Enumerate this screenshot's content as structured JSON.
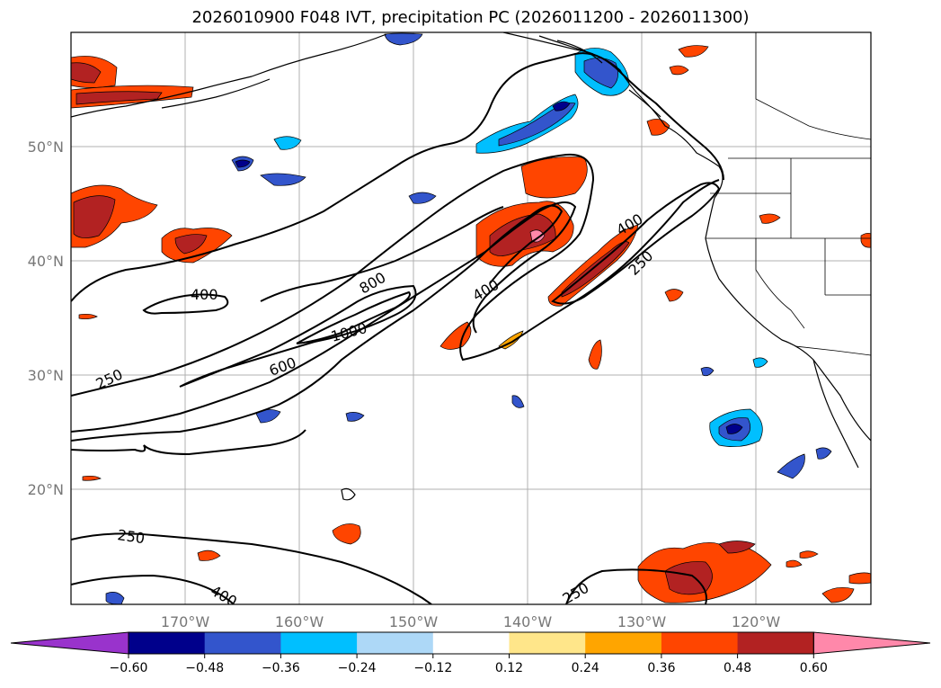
{
  "title": "2026010900 F048 IVT, precipitation PC (2026011200 - 2026011300)",
  "map": {
    "lat_labels": [
      "50°N",
      "40°N",
      "30°N",
      "20°N"
    ],
    "lon_labels": [
      "170°W",
      "160°W",
      "150°W",
      "140°W",
      "130°W",
      "120°W"
    ],
    "contour_labels": [
      "400",
      "800",
      "400",
      "400",
      "250",
      "1000",
      "600",
      "250",
      "250",
      "400",
      "250"
    ]
  },
  "colorbar": {
    "ticks": [
      "−0.60",
      "−0.48",
      "−0.36",
      "−0.24",
      "−0.12",
      "0.12",
      "0.24",
      "0.36",
      "0.48",
      "0.60"
    ],
    "colors": [
      "#9933cc",
      "#00008b",
      "#3355cc",
      "#00bfff",
      "#add8f7",
      "#ffffff",
      "#ffe68a",
      "#ffa500",
      "#ff4500",
      "#b22222",
      "#ff88aa"
    ]
  }
}
